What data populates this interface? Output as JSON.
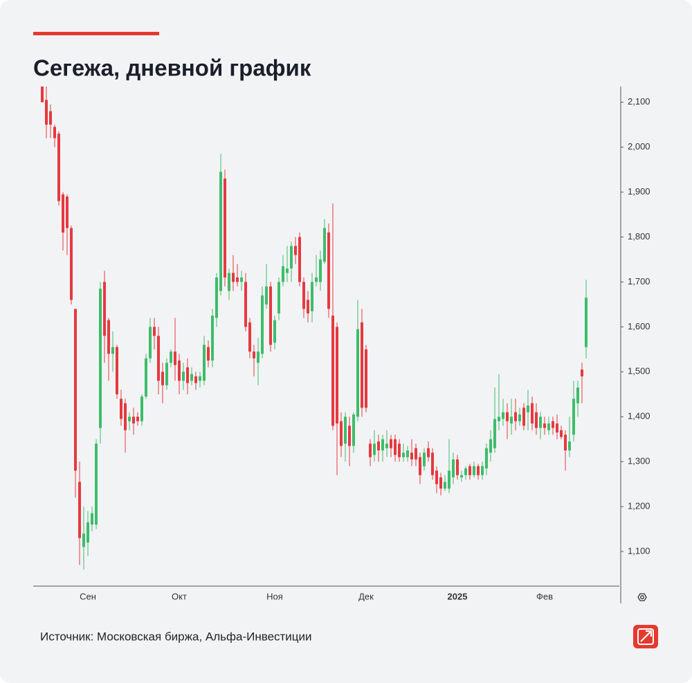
{
  "chart_data": {
    "type": "candlestick",
    "title": "Сегежа, дневной график",
    "source": "Источник: Московская биржа, Альфа-Инвестиции",
    "up_color": "#3dbd6a",
    "down_color": "#e5393f",
    "ylim": [
      1023,
      2135
    ],
    "yticks": [
      {
        "value": 1100,
        "label": "1,100"
      },
      {
        "value": 1200,
        "label": "1,200"
      },
      {
        "value": 1300,
        "label": "1,300"
      },
      {
        "value": 1400,
        "label": "1,400"
      },
      {
        "value": 1500,
        "label": "1,500"
      },
      {
        "value": 1600,
        "label": "1,600"
      },
      {
        "value": 1700,
        "label": "1,700"
      },
      {
        "value": 1800,
        "label": "1,800"
      },
      {
        "value": 1900,
        "label": "1,900"
      },
      {
        "value": 2000,
        "label": "2,000"
      },
      {
        "value": 2100,
        "label": "2,100"
      }
    ],
    "categories": [
      null,
      null,
      null,
      null,
      null,
      null,
      null,
      null,
      null,
      null,
      null,
      "Сен",
      null,
      null,
      null,
      null,
      null,
      null,
      null,
      null,
      null,
      null,
      null,
      null,
      null,
      null,
      null,
      null,
      null,
      null,
      null,
      null,
      null,
      "Окт",
      null,
      null,
      null,
      null,
      null,
      null,
      null,
      null,
      null,
      null,
      null,
      null,
      null,
      null,
      null,
      null,
      null,
      null,
      null,
      null,
      null,
      null,
      "Ноя",
      null,
      null,
      null,
      null,
      null,
      null,
      null,
      null,
      null,
      null,
      null,
      null,
      null,
      null,
      null,
      null,
      null,
      null,
      null,
      null,
      null,
      "Дек",
      null,
      null,
      null,
      null,
      null,
      null,
      null,
      null,
      null,
      null,
      null,
      null,
      null,
      null,
      null,
      null,
      null,
      null,
      null,
      null,
      null,
      "2025",
      null,
      null,
      null,
      null,
      null,
      null,
      null,
      null,
      null,
      null,
      null,
      null,
      null,
      null,
      null,
      null,
      null,
      null,
      null,
      null,
      "Фев",
      null,
      null,
      null,
      null,
      null,
      null,
      null,
      null,
      null,
      null
    ],
    "open": [
      2135,
      2105,
      2080,
      2045,
      2030,
      1895,
      1890,
      1820,
      1640,
      1255,
      1110,
      1120,
      1160,
      1160,
      1375,
      1700,
      1615,
      1540,
      1555,
      1440,
      1430,
      1390,
      1400,
      1400,
      1390,
      1445,
      1530,
      1600,
      1580,
      1500,
      1470,
      1520,
      1545,
      1525,
      1480,
      1510,
      1480,
      1490,
      1480,
      1480,
      1555,
      1525,
      1620,
      1680,
      1930,
      1680,
      1720,
      1710,
      1700,
      1700,
      1610,
      1545,
      1520,
      1540,
      1650,
      1690,
      1565,
      1630,
      1700,
      1720,
      1730,
      1780,
      1800,
      1700,
      1660,
      1635,
      1700,
      1700,
      1745,
      1810,
      1625,
      1600,
      1390,
      1340,
      1380,
      1335,
      1400,
      1610,
      1550,
      1340,
      1315,
      1345,
      1325,
      1330,
      1350,
      1350,
      1340,
      1310,
      1310,
      1320,
      1330,
      1310,
      1290,
      1330,
      1320,
      1280,
      1265,
      1240,
      1240,
      1265,
      1305,
      1265,
      1270,
      1290,
      1270,
      1290,
      1270,
      1285,
      1320,
      1330,
      1390,
      1395,
      1410,
      1385,
      1410,
      1390,
      1420,
      1410,
      1430,
      1410,
      1375,
      1385,
      1370,
      1390,
      1385,
      1370,
      1360,
      1325,
      1360,
      1430,
      1505,
      1555
    ],
    "high": [
      2135,
      2135,
      2095,
      2050,
      2035,
      1900,
      1895,
      1825,
      1640,
      1300,
      1200,
      1190,
      1200,
      1350,
      1700,
      1725,
      1620,
      1590,
      1560,
      1460,
      1440,
      1410,
      1420,
      1410,
      1450,
      1540,
      1620,
      1620,
      1600,
      1520,
      1530,
      1550,
      1620,
      1540,
      1520,
      1530,
      1510,
      1500,
      1500,
      1580,
      1570,
      1640,
      1720,
      1985,
      1950,
      1730,
      1760,
      1740,
      1725,
      1720,
      1620,
      1560,
      1575,
      1690,
      1740,
      1700,
      1625,
      1710,
      1760,
      1780,
      1790,
      1800,
      1810,
      1710,
      1680,
      1720,
      1760,
      1770,
      1840,
      1830,
      1875,
      1610,
      1410,
      1410,
      1400,
      1410,
      1660,
      1640,
      1560,
      1350,
      1370,
      1360,
      1360,
      1370,
      1360,
      1360,
      1350,
      1340,
      1335,
      1350,
      1340,
      1320,
      1330,
      1345,
      1330,
      1290,
      1275,
      1270,
      1350,
      1320,
      1315,
      1280,
      1290,
      1295,
      1300,
      1295,
      1300,
      1340,
      1370,
      1465,
      1495,
      1440,
      1430,
      1440,
      1440,
      1420,
      1430,
      1460,
      1445,
      1430,
      1410,
      1400,
      1400,
      1400,
      1405,
      1380,
      1370,
      1400,
      1480,
      1480,
      1520,
      1705
    ],
    "low": [
      2100,
      2020,
      2020,
      2000,
      1870,
      1770,
      1760,
      1650,
      1220,
      1070,
      1060,
      1090,
      1145,
      1150,
      1340,
      1520,
      1480,
      1500,
      1440,
      1380,
      1320,
      1370,
      1360,
      1380,
      1380,
      1440,
      1520,
      1550,
      1450,
      1430,
      1460,
      1510,
      1480,
      1450,
      1460,
      1450,
      1470,
      1460,
      1465,
      1470,
      1510,
      1510,
      1600,
      1670,
      1690,
      1660,
      1680,
      1690,
      1680,
      1590,
      1530,
      1490,
      1470,
      1530,
      1640,
      1545,
      1550,
      1615,
      1690,
      1700,
      1700,
      1740,
      1690,
      1620,
      1610,
      1610,
      1690,
      1680,
      1740,
      1620,
      1370,
      1270,
      1310,
      1300,
      1290,
      1320,
      1390,
      1400,
      1410,
      1290,
      1300,
      1300,
      1300,
      1310,
      1310,
      1300,
      1300,
      1300,
      1300,
      1290,
      1290,
      1250,
      1280,
      1300,
      1260,
      1230,
      1225,
      1235,
      1230,
      1250,
      1260,
      1255,
      1260,
      1260,
      1265,
      1260,
      1260,
      1270,
      1300,
      1320,
      1370,
      1380,
      1350,
      1360,
      1370,
      1380,
      1370,
      1370,
      1370,
      1360,
      1350,
      1360,
      1360,
      1360,
      1350,
      1350,
      1280,
      1310,
      1345,
      1400,
      1430,
      1530
    ],
    "close": [
      2100,
      2050,
      2050,
      2020,
      1880,
      1810,
      1820,
      1660,
      1280,
      1130,
      1140,
      1165,
      1185,
      1340,
      1685,
      1580,
      1540,
      1555,
      1450,
      1395,
      1370,
      1400,
      1385,
      1390,
      1445,
      1530,
      1600,
      1580,
      1480,
      1470,
      1520,
      1545,
      1515,
      1480,
      1500,
      1475,
      1495,
      1475,
      1490,
      1560,
      1525,
      1625,
      1710,
      1945,
      1710,
      1720,
      1700,
      1700,
      1710,
      1600,
      1545,
      1530,
      1545,
      1670,
      1690,
      1560,
      1615,
      1700,
      1735,
      1730,
      1780,
      1760,
      1700,
      1640,
      1630,
      1700,
      1710,
      1750,
      1820,
      1640,
      1380,
      1385,
      1335,
      1400,
      1335,
      1405,
      1595,
      1420,
      1420,
      1310,
      1340,
      1325,
      1350,
      1340,
      1330,
      1315,
      1310,
      1320,
      1325,
      1305,
      1305,
      1270,
      1320,
      1310,
      1270,
      1250,
      1240,
      1255,
      1280,
      1305,
      1270,
      1270,
      1285,
      1270,
      1290,
      1270,
      1290,
      1330,
      1350,
      1395,
      1400,
      1410,
      1390,
      1400,
      1390,
      1405,
      1380,
      1425,
      1385,
      1375,
      1400,
      1375,
      1385,
      1375,
      1365,
      1355,
      1325,
      1345,
      1440,
      1465,
      1490,
      1665
    ]
  }
}
